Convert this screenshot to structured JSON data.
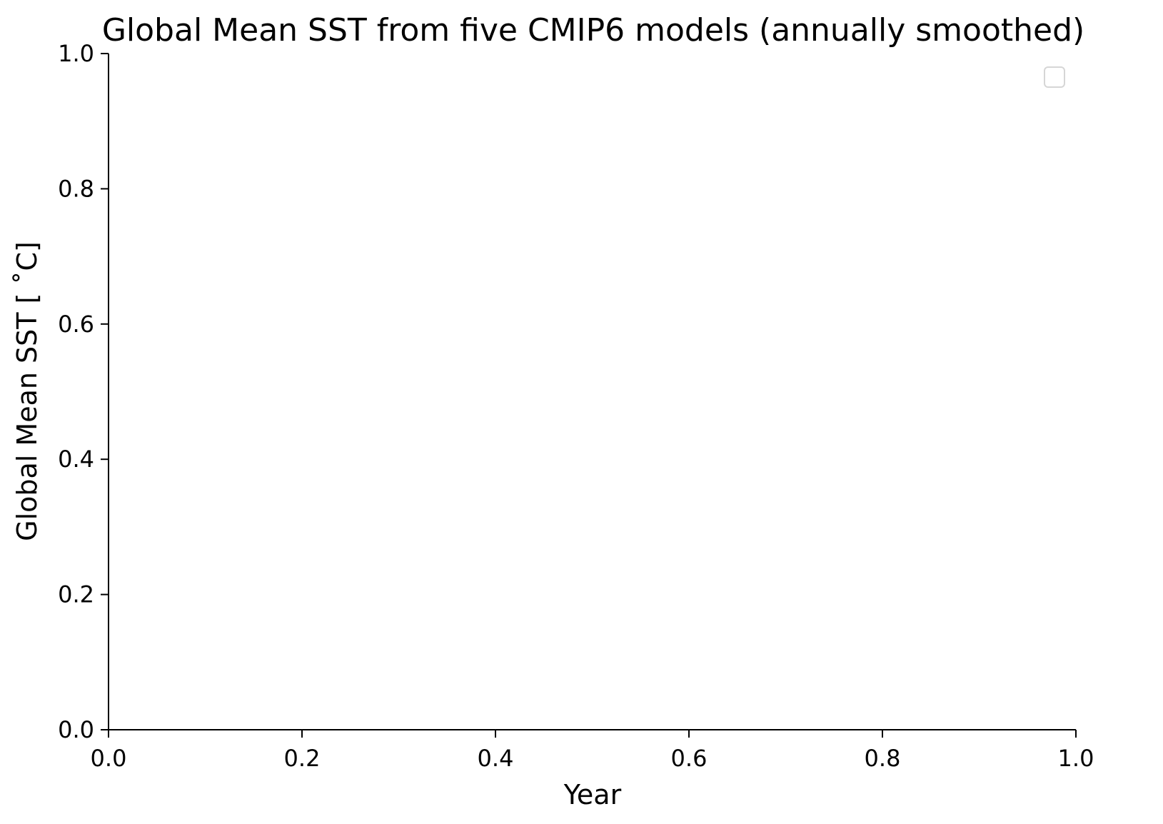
{
  "chart_data": {
    "type": "line",
    "title": "Global Mean SST from five CMIP6 models (annually smoothed)",
    "xlabel": "Year",
    "ylabel": "Global Mean SST [$^\\circ$C]",
    "ylabel_display": "Global Mean SST [ ˚C]",
    "xlim": [
      0.0,
      1.0
    ],
    "ylim": [
      0.0,
      1.0
    ],
    "xticks": [
      "0.0",
      "0.2",
      "0.4",
      "0.6",
      "0.8",
      "1.0"
    ],
    "yticks": [
      "0.0",
      "0.2",
      "0.4",
      "0.6",
      "0.8",
      "1.0"
    ],
    "series": [],
    "grid": false,
    "legend": {
      "placement": "top-right",
      "entries": []
    }
  }
}
